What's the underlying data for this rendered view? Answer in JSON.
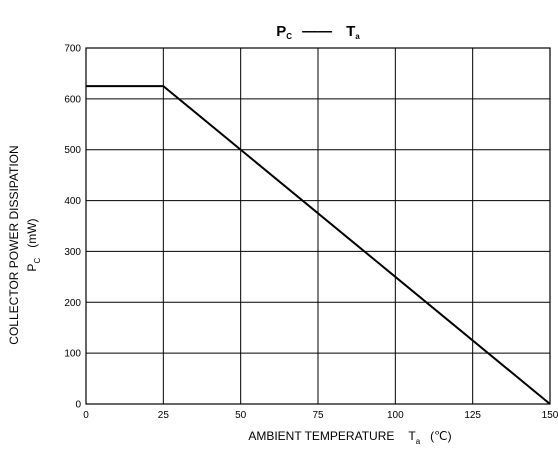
{
  "chart_data": {
    "type": "line",
    "title": {
      "left_main": "P",
      "left_sub": "C",
      "dash": "——",
      "right_main": "T",
      "right_sub": "a"
    },
    "xlabel": {
      "text": "AMBIENT TEMPERATURE",
      "symbol": "T",
      "symbol_sub": "a",
      "unit": "(℃)"
    },
    "ylabel": {
      "line1": "COLLECTOR POWER DISSIPATION",
      "symbol": "P",
      "symbol_sub": "C",
      "unit": "(mW)"
    },
    "xlim": [
      0,
      150
    ],
    "ylim": [
      0,
      700
    ],
    "x_ticks": [
      0,
      25,
      50,
      75,
      100,
      125,
      150
    ],
    "y_ticks": [
      0,
      100,
      200,
      300,
      400,
      500,
      600,
      700
    ],
    "x_tick_labels": [
      "0",
      "25",
      "50",
      "75",
      "100",
      "125",
      "150"
    ],
    "y_tick_labels": [
      "0",
      "100",
      "200",
      "300",
      "400",
      "500",
      "600",
      "700"
    ],
    "grid": true,
    "series": [
      {
        "x": [
          0,
          25,
          150
        ],
        "y": [
          625,
          625,
          0
        ],
        "color": "#000000"
      }
    ]
  }
}
